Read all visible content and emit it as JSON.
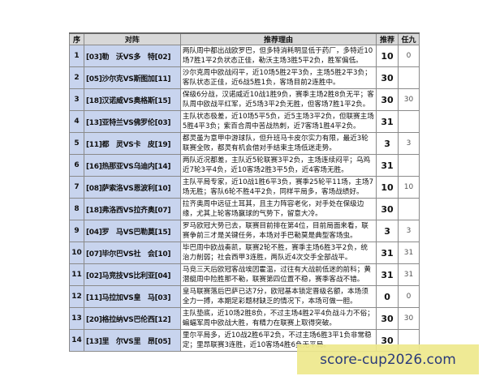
{
  "headers": [
    "序",
    "对阵",
    "推荐理由",
    "推荐",
    "任九"
  ],
  "rows": [
    {
      "no": "1",
      "match": "[03]勒　沃VS多　特[02]",
      "reason": "两队周中都出战欧罗巴，但多特消耗明显低于药厂，多特近10场7胜1平2负状态正佳，勒沃主场3胜5平2负，胜军偏低。",
      "pick": "10",
      "r9": "0"
    },
    {
      "no": "2",
      "match": "[05]沙尔克VS斯图加[11]",
      "reason": "沙尔克周中欧战闷平，近10场5胜2平3负，主场5胜2平3负；客队状态正佳，近6战5胜1负，客场目前2连胜中。",
      "pick": "30",
      "r9": ""
    },
    {
      "no": "3",
      "match": "[18]汉诺威VS奥格斯[15]",
      "reason": "保级6分战，汉诺威近10战1胜9负，赛季主场2胜8负无平；客队周中欧战平红军，近5场3平2负无胜，但客场7胜1平2负。",
      "pick": "30",
      "r9": "30"
    },
    {
      "no": "4",
      "match": "[13]亚特兰VS佛罗伦[03]",
      "reason": "主队状态极差，近10场5平5负，近5主场3平2负，但联赛主场5胜4平3负；紫百合周中苦战热刺，近7客场1胜4平2负。",
      "pick": "31",
      "r9": ""
    },
    {
      "no": "5",
      "match": "[11]都　灵VS卡　皮[19]",
      "reason": "都灵虽为意甲中游球队，但升班马卡皮尔实力有限，最近3轮联赛全败，都灵有机会借对手结束主场低迷走势。",
      "pick": "3",
      "r9": "3"
    },
    {
      "no": "6",
      "match": "[16]热那亚VS乌迪内[14]",
      "reason": "两队近况都差，主队近5轮联赛3平2负，主场连续闷平；乌鸡近7轮3平4负，近10客场2胜3平5负，近4客场无胜。",
      "pick": "31",
      "r9": ""
    },
    {
      "no": "7",
      "match": "[08]萨索洛VS恩波利[10]",
      "reason": "主队平局专家，近10战1胜6平3负，赛季25轮平11场，主场7场无胜；客队6轮不胜4平2负，同样平局多，客场战绩好。",
      "pick": "10",
      "r9": "10"
    },
    {
      "no": "8",
      "match": "[18]弗洛西VS拉齐奥[07]",
      "reason": "拉齐奥周中远征土耳其，且主力阵容老化，对手处在保级边缘，尤其上轮客场赢球的气势下，留意大冷。",
      "pick": "30",
      "r9": ""
    },
    {
      "no": "9",
      "match": "[04]罗　马VS巴勒莫[15]",
      "reason": "罗马欧冠大势已去，联赛目前排在第4位，目前局面来看，联赛争前三才是关键任务，本场对手巴勒莫是典型客场虫。",
      "pick": "3",
      "r9": "3"
    },
    {
      "no": "10",
      "match": "[07]毕尔巴VS社　会[10]",
      "reason": "毕巴周中欧战奏凯，联赛2轮不胜，赛季主场6胜3平2负，统治力削弱；社会西甲3连胜，两队近4次交手全部战平。",
      "pick": "31",
      "r9": "31"
    },
    {
      "no": "11",
      "match": "[02]马竞技VS比利亚[04]",
      "reason": "马竞三天后欧冠客战埃因霍温，过往有大战前低迷的前科；黄潜艇周中险胜那不勒，联赛第四位置不稳，赛季客战不错。",
      "pick": "31",
      "r9": "31"
    },
    {
      "no": "12",
      "match": "[11]马拉加VS皇　马[03]",
      "reason": "皇马联赛落后巴萨已达7分，欧冠基本锁定晋级名额，本场须全力一搏，本期足彩题材缺乏的情况下，本场可做一胆。",
      "pick": "0",
      "r9": "0"
    },
    {
      "no": "13",
      "match": "[20]格拉纳VS巴伦西[12]",
      "reason": "主队垫底，近10场2胜8负，不过主场4胜2平4负战斗力不俗；蝙蝠军周中欧战大胜，有精力在联赛上取得突破。",
      "pick": "30",
      "r9": "30"
    },
    {
      "no": "14",
      "match": "[13]里　尔VS里　昂[05]",
      "reason": "里尔平局多，近10战2胜6平2负，不过主场6胜3平1负非常稳定；里昂联赛3连胜，近10客场4胜6负无平局。",
      "pick": "30",
      "r9": ""
    }
  ],
  "watermark": "score-cup2026.com"
}
